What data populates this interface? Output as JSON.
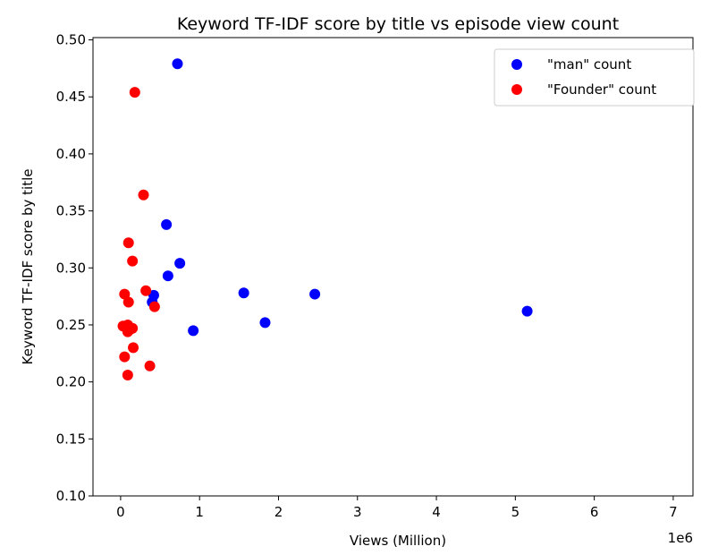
{
  "chart_data": {
    "type": "scatter",
    "title": "Keyword TF-IDF score by title vs episode view count",
    "xlabel": "Views (Million)",
    "ylabel": "Keyword TF-IDF score by title",
    "x_offset_label": "1e6",
    "xlim": [
      -350000,
      7250000
    ],
    "ylim": [
      0.1,
      0.502
    ],
    "xticks": [
      0,
      1000000,
      2000000,
      3000000,
      4000000,
      5000000,
      6000000,
      7000000
    ],
    "xtick_labels": [
      "0",
      "1",
      "2",
      "3",
      "4",
      "5",
      "6",
      "7"
    ],
    "yticks": [
      0.1,
      0.15,
      0.2,
      0.25,
      0.3,
      0.35,
      0.4,
      0.45,
      0.5
    ],
    "ytick_labels": [
      "0.10",
      "0.15",
      "0.20",
      "0.25",
      "0.30",
      "0.35",
      "0.40",
      "0.45",
      "0.50"
    ],
    "grid": false,
    "legend_position": "top-right",
    "series": [
      {
        "name": "\"man\" count",
        "color": "#0000ff",
        "points": [
          [
            720000,
            0.479
          ],
          [
            580000,
            0.338
          ],
          [
            750000,
            0.304
          ],
          [
            600000,
            0.293
          ],
          [
            420000,
            0.276
          ],
          [
            400000,
            0.27
          ],
          [
            1560000,
            0.278
          ],
          [
            2460000,
            0.277
          ],
          [
            920000,
            0.245
          ],
          [
            1830000,
            0.252
          ],
          [
            5150000,
            0.262
          ]
        ]
      },
      {
        "name": "\"Founder\" count",
        "color": "#ff0000",
        "points": [
          [
            180000,
            0.454
          ],
          [
            290000,
            0.364
          ],
          [
            100000,
            0.322
          ],
          [
            150000,
            0.306
          ],
          [
            50000,
            0.277
          ],
          [
            320000,
            0.28
          ],
          [
            100000,
            0.27
          ],
          [
            430000,
            0.266
          ],
          [
            30000,
            0.249
          ],
          [
            90000,
            0.25
          ],
          [
            120000,
            0.246
          ],
          [
            150000,
            0.247
          ],
          [
            90000,
            0.244
          ],
          [
            160000,
            0.23
          ],
          [
            50000,
            0.222
          ],
          [
            370000,
            0.214
          ],
          [
            90000,
            0.206
          ]
        ]
      }
    ]
  }
}
